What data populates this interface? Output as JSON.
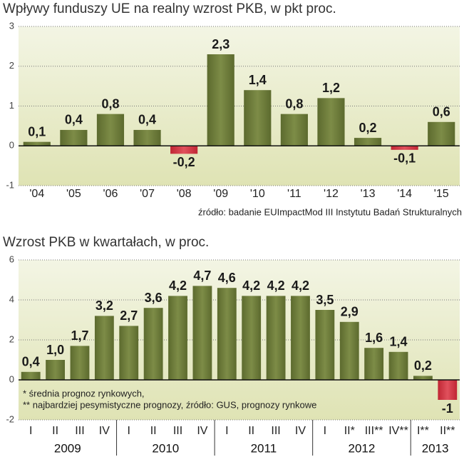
{
  "chart_data": [
    {
      "type": "bar",
      "title": "Wpływy funduszy UE na realny wzrost PKB, w pkt proc.",
      "categories": [
        "'04",
        "'05",
        "'06",
        "'07",
        "'08",
        "'09",
        "'10",
        "'11",
        "'12",
        "'13",
        "'14",
        "'15"
      ],
      "values": [
        0.1,
        0.4,
        0.8,
        0.4,
        -0.2,
        2.3,
        1.4,
        0.8,
        1.2,
        0.2,
        -0.1,
        0.6
      ],
      "value_labels": [
        "0,1",
        "0,4",
        "0,8",
        "0,4",
        "-0,2",
        "2,3",
        "1,4",
        "0,8",
        "1,2",
        "0,2",
        "-0,1",
        "0,6"
      ],
      "color": "#6e7d3c",
      "negative_color": "#d5303e",
      "ylim": [
        -1,
        3
      ],
      "yticks": [
        -1,
        0,
        1,
        2,
        3
      ],
      "grid": true,
      "source": "źródło: badanie EUImpactMod III Instytutu Badań Strukturalnych"
    },
    {
      "type": "bar",
      "title": "Wzrost PKB w kwartałach, w proc.",
      "categories": [
        "I",
        "II",
        "III",
        "IV",
        "I",
        "II",
        "III",
        "IV",
        "I",
        "II",
        "III",
        "IV",
        "I",
        "II*",
        "III**",
        "IV**",
        "I**",
        "II**"
      ],
      "values": [
        0.4,
        1.0,
        1.7,
        3.2,
        2.7,
        3.6,
        4.2,
        4.7,
        4.6,
        4.2,
        4.2,
        4.2,
        3.5,
        2.9,
        1.6,
        1.4,
        0.2,
        -1
      ],
      "value_labels": [
        "0,4",
        "1,0",
        "1,7",
        "3,2",
        "2,7",
        "3,6",
        "4,2",
        "4,7",
        "4,6",
        "4,2",
        "4,2",
        "4,2",
        "3,5",
        "2,9",
        "1,6",
        "1,4",
        "0,2",
        "-1"
      ],
      "years": [
        "2009",
        "2010",
        "2011",
        "2012",
        "2013"
      ],
      "color": "#6e7d3c",
      "negative_color": "#d5303e",
      "ylim": [
        -2,
        6
      ],
      "yticks": [
        -2,
        0,
        2,
        4,
        6
      ],
      "grid": true,
      "notes": [
        "* średnia prognoz rynkowych,",
        "** najbardziej pesymistyczne prognozy, źródło: GUS, prognozy rynkowe"
      ]
    }
  ]
}
